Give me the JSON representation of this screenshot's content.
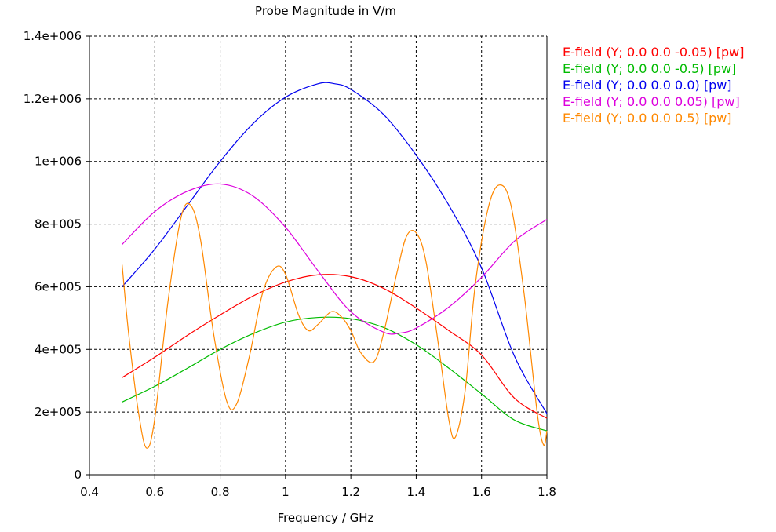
{
  "chart_data": {
    "type": "line",
    "title": "Probe Magnitude in V/m",
    "xlabel": "Frequency / GHz",
    "ylabel": "",
    "xlim": [
      0.4,
      1.8
    ],
    "ylim": [
      0,
      1400000
    ],
    "xticks": [
      0.4,
      0.6,
      0.8,
      1,
      1.2,
      1.4,
      1.6,
      1.8
    ],
    "xtick_labels": [
      "0.4",
      "0.6",
      "0.8",
      "1",
      "1.2",
      "1.4",
      "1.6",
      "1.8"
    ],
    "yticks": [
      0,
      200000,
      400000,
      600000,
      800000,
      1000000,
      1200000,
      1400000
    ],
    "ytick_labels": [
      "0",
      "2e+005",
      "4e+005",
      "6e+005",
      "8e+005",
      "1e+006",
      "1.2e+006",
      "1.4e+006"
    ],
    "grid": true,
    "legend_position": "right",
    "series": [
      {
        "name": "E-field (Y; 0.0 0.0 -0.05) [pw]",
        "color": "#ff0000",
        "x": [
          0.5,
          0.6,
          0.7,
          0.8,
          0.9,
          1.0,
          1.1,
          1.2,
          1.3,
          1.4,
          1.5,
          1.6,
          1.7,
          1.8
        ],
        "y": [
          310000,
          375000,
          445000,
          510000,
          570000,
          615000,
          638000,
          632000,
          595000,
          532000,
          460000,
          382000,
          245000,
          180000
        ]
      },
      {
        "name": "E-field (Y; 0.0 0.0 -0.5) [pw]",
        "color": "#00bb00",
        "x": [
          0.5,
          0.6,
          0.7,
          0.8,
          0.9,
          1.0,
          1.1,
          1.2,
          1.3,
          1.4,
          1.5,
          1.6,
          1.7,
          1.8
        ],
        "y": [
          232000,
          282000,
          340000,
          400000,
          450000,
          487000,
          502000,
          498000,
          470000,
          415000,
          340000,
          258000,
          175000,
          140000
        ]
      },
      {
        "name": "E-field (Y; 0.0 0.0 0.0) [pw]",
        "color": "#0000ee",
        "x": [
          0.5,
          0.6,
          0.7,
          0.8,
          0.9,
          1.0,
          1.1,
          1.15,
          1.2,
          1.3,
          1.4,
          1.5,
          1.6,
          1.7,
          1.8
        ],
        "y": [
          600000,
          720000,
          860000,
          1000000,
          1120000,
          1205000,
          1248000,
          1248000,
          1230000,
          1150000,
          1020000,
          860000,
          660000,
          380000,
          195000
        ]
      },
      {
        "name": "E-field (Y; 0.0 0.0 0.05) [pw]",
        "color": "#dd00dd",
        "x": [
          0.5,
          0.6,
          0.7,
          0.8,
          0.9,
          1.0,
          1.1,
          1.2,
          1.3,
          1.35,
          1.4,
          1.5,
          1.6,
          1.7,
          1.8
        ],
        "y": [
          735000,
          840000,
          905000,
          928000,
          890000,
          790000,
          650000,
          520000,
          455000,
          452000,
          468000,
          535000,
          630000,
          745000,
          815000
        ]
      },
      {
        "name": "E-field (Y; 0.0 0.0 0.5) [pw]",
        "color": "#ff8800",
        "x": [
          0.5,
          0.52,
          0.55,
          0.575,
          0.6,
          0.64,
          0.68,
          0.71,
          0.74,
          0.78,
          0.82,
          0.85,
          0.89,
          0.93,
          0.97,
          1.0,
          1.04,
          1.07,
          1.1,
          1.14,
          1.17,
          1.2,
          1.23,
          1.27,
          1.3,
          1.34,
          1.37,
          1.4,
          1.43,
          1.47,
          1.5,
          1.52,
          1.55,
          1.58,
          1.62,
          1.655,
          1.69,
          1.73,
          1.77,
          1.79,
          1.8
        ],
        "y": [
          670000,
          450000,
          200000,
          85000,
          180000,
          550000,
          820000,
          860000,
          750000,
          450000,
          235000,
          225000,
          380000,
          580000,
          662000,
          640000,
          510000,
          460000,
          480000,
          520000,
          505000,
          460000,
          390000,
          360000,
          450000,
          640000,
          760000,
          772000,
          680000,
          400000,
          175000,
          120000,
          270000,
          600000,
          850000,
          925000,
          860000,
          580000,
          200000,
          95000,
          140000
        ]
      }
    ]
  }
}
